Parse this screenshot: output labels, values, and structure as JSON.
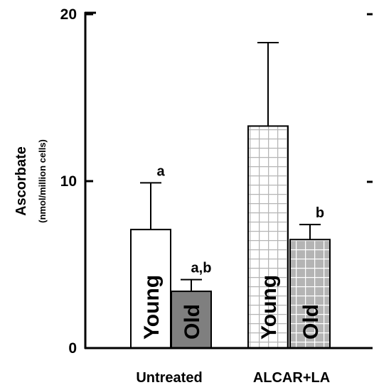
{
  "chart_data": {
    "type": "bar",
    "categories": [
      "Untreated",
      "ALCAR+LA"
    ],
    "ylabel": "Ascorbate",
    "ylabel_unit": "(nmol/million cells)",
    "ylim": [
      0,
      20
    ],
    "yticks": [
      "0",
      "10",
      "20"
    ],
    "grid": false,
    "bars": [
      {
        "category": "Untreated",
        "label": "Young",
        "value": 7.1,
        "error": 2.8,
        "sig": "a",
        "fill": "#ffffff",
        "pattern": "none",
        "text_color": "#000000"
      },
      {
        "category": "Untreated",
        "label": "Old",
        "value": 3.4,
        "error": 0.7,
        "sig": "a,b",
        "fill": "#7f7f7f",
        "pattern": "none",
        "text_color": "#000000"
      },
      {
        "category": "ALCAR+LA",
        "label": "Young",
        "value": 13.3,
        "error": 5.0,
        "sig": "",
        "fill": "#ffffff",
        "pattern": "grid",
        "grid_color": "#b5b5b5",
        "text_color": "#000000"
      },
      {
        "category": "ALCAR+LA",
        "label": "Old",
        "value": 6.5,
        "error": 0.9,
        "sig": "b",
        "fill": "#b4b4b4",
        "pattern": "grid",
        "grid_color": "#ffffff",
        "text_color": "#000000"
      }
    ]
  }
}
